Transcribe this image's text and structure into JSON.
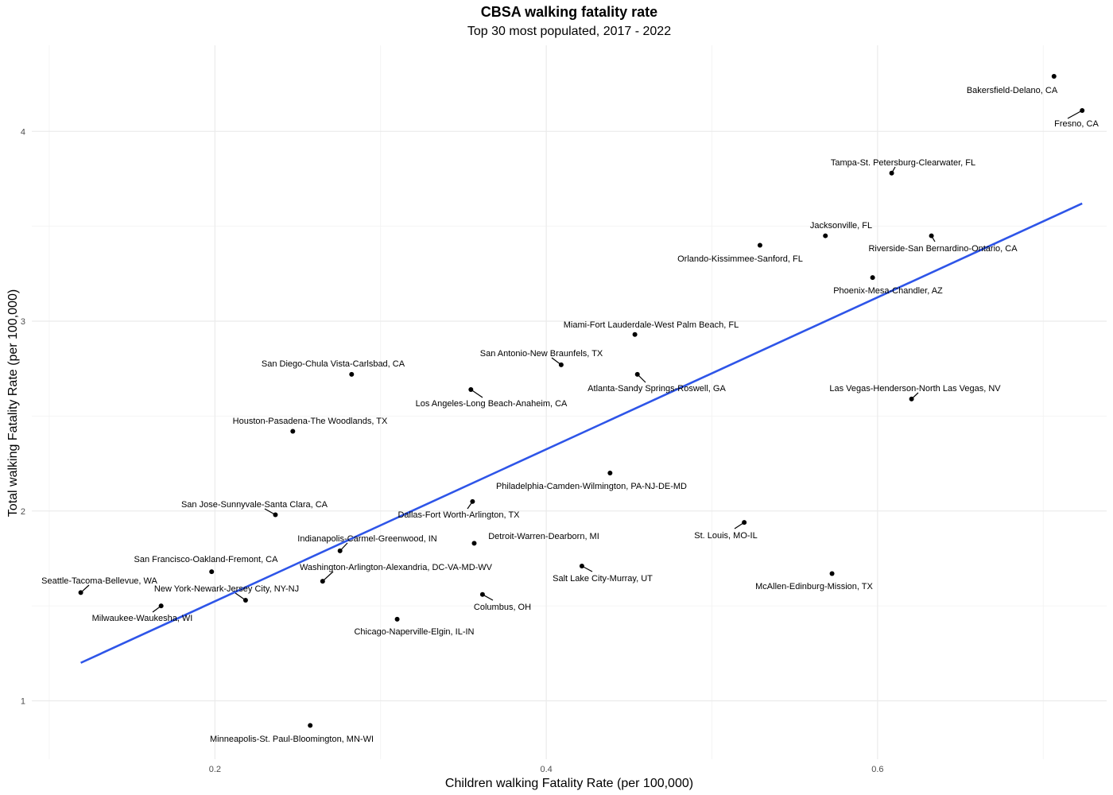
{
  "chart_data": {
    "type": "scatter",
    "title": "CBSA walking fatality rate",
    "subtitle": "Top 30 most populated, 2017 - 2022",
    "xlabel": "Children walking Fatality Rate (per 100,000)",
    "ylabel": "Total walking Fatality Rate (per 100,000)",
    "xlim": [
      0.1,
      0.738
    ],
    "ylim": [
      0.7,
      4.3
    ],
    "x_ticks": [
      0.2,
      0.4,
      0.6
    ],
    "y_ticks": [
      1,
      2,
      3,
      4
    ],
    "grid": true,
    "trendline": {
      "type": "linear",
      "color": "#2e55e8",
      "x_start": 0.119,
      "y_start": 1.2,
      "x_end": 0.7235,
      "y_end": 3.62
    },
    "points": [
      {
        "name": "Bakersfield-Delano, CA",
        "x": 0.7065,
        "y": 4.29
      },
      {
        "name": "Fresno, CA",
        "x": 0.7235,
        "y": 4.11
      },
      {
        "name": "Tampa-St. Petersburg-Clearwater, FL",
        "x": 0.6085,
        "y": 3.78
      },
      {
        "name": "Jacksonville, FL",
        "x": 0.5685,
        "y": 3.45
      },
      {
        "name": "Riverside-San Bernardino-Ontario, CA",
        "x": 0.6325,
        "y": 3.45
      },
      {
        "name": "Orlando-Kissimmee-Sanford, FL",
        "x": 0.529,
        "y": 3.4
      },
      {
        "name": "Phoenix-Mesa-Chandler, AZ",
        "x": 0.597,
        "y": 3.23
      },
      {
        "name": "Miami-Fort Lauderdale-West Palm Beach, FL",
        "x": 0.4535,
        "y": 2.93
      },
      {
        "name": "San Antonio-New Braunfels, TX",
        "x": 0.409,
        "y": 2.77
      },
      {
        "name": "Atlanta-Sandy Springs-Roswell, GA",
        "x": 0.455,
        "y": 2.72
      },
      {
        "name": "San Diego-Chula Vista-Carlsbad, CA",
        "x": 0.2825,
        "y": 2.72
      },
      {
        "name": "Los Angeles-Long Beach-Anaheim, CA",
        "x": 0.3545,
        "y": 2.64
      },
      {
        "name": "Las Vegas-Henderson-North Las Vegas, NV",
        "x": 0.6205,
        "y": 2.59
      },
      {
        "name": "Houston-Pasadena-The Woodlands, TX",
        "x": 0.247,
        "y": 2.42
      },
      {
        "name": "Philadelphia-Camden-Wilmington, PA-NJ-DE-MD",
        "x": 0.4385,
        "y": 2.2
      },
      {
        "name": "Dallas-Fort Worth-Arlington, TX",
        "x": 0.3555,
        "y": 2.05
      },
      {
        "name": "San Jose-Sunnyvale-Santa Clara, CA",
        "x": 0.2365,
        "y": 1.98
      },
      {
        "name": "St. Louis, MO-IL",
        "x": 0.5195,
        "y": 1.94
      },
      {
        "name": "Detroit-Warren-Dearborn, MI",
        "x": 0.3565,
        "y": 1.83
      },
      {
        "name": "Indianapolis-Carmel-Greenwood, IN",
        "x": 0.2755,
        "y": 1.79
      },
      {
        "name": "Salt Lake City-Murray, UT",
        "x": 0.4215,
        "y": 1.71
      },
      {
        "name": "San Francisco-Oakland-Fremont, CA",
        "x": 0.198,
        "y": 1.68
      },
      {
        "name": "McAllen-Edinburg-Mission, TX",
        "x": 0.5725,
        "y": 1.67
      },
      {
        "name": "Washington-Arlington-Alexandria, DC-VA-MD-WV",
        "x": 0.265,
        "y": 1.63
      },
      {
        "name": "Seattle-Tacoma-Bellevue, WA",
        "x": 0.119,
        "y": 1.57
      },
      {
        "name": "Columbus, OH",
        "x": 0.3615,
        "y": 1.56
      },
      {
        "name": "New York-Newark-Jersey City, NY-NJ",
        "x": 0.2185,
        "y": 1.53
      },
      {
        "name": "Milwaukee-Waukesha, WI",
        "x": 0.1675,
        "y": 1.5
      },
      {
        "name": "Chicago-Naperville-Elgin, IL-IN",
        "x": 0.31,
        "y": 1.43
      },
      {
        "name": "Minneapolis-St. Paul-Bloomington, MN-WI",
        "x": 0.2575,
        "y": 0.87
      }
    ]
  }
}
